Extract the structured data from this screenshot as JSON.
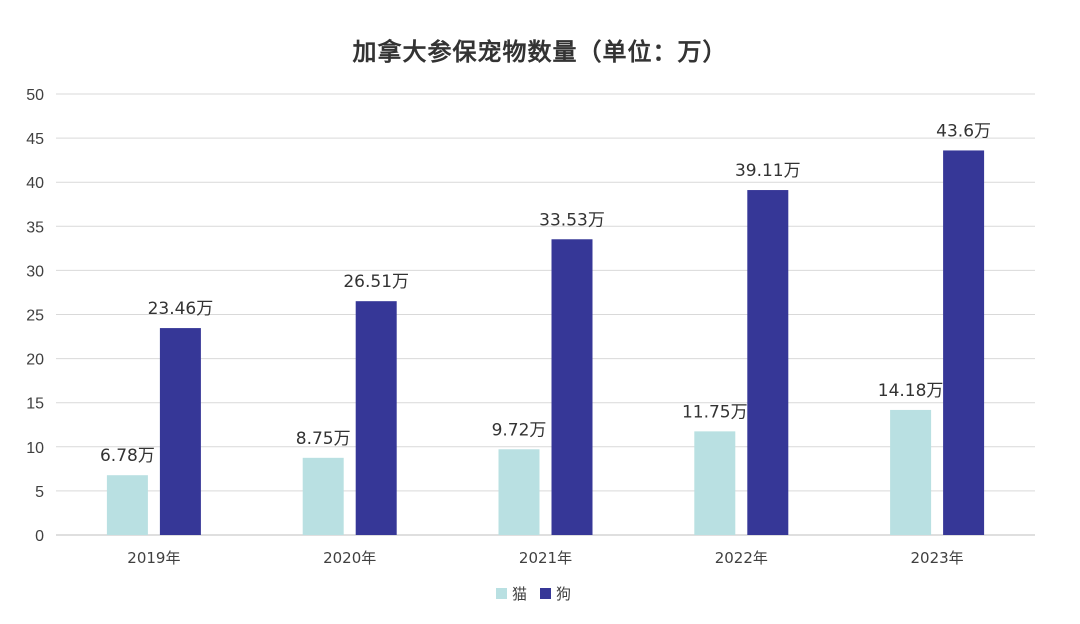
{
  "chart_data": {
    "type": "bar",
    "title": "加拿大参保宠物数量（单位：万）",
    "categories": [
      "2019年",
      "2020年",
      "2021年",
      "2022年",
      "2023年"
    ],
    "series": [
      {
        "name": "猫",
        "color": "#b9e0e2",
        "values": [
          6.78,
          8.75,
          9.72,
          11.75,
          14.18
        ],
        "labels": [
          "6.78万",
          "8.75万",
          "9.72万",
          "11.75万",
          "14.18万"
        ]
      },
      {
        "name": "狗",
        "color": "#363797",
        "values": [
          23.46,
          26.51,
          33.53,
          39.11,
          43.6
        ],
        "labels": [
          "23.46万",
          "26.51万",
          "33.53万",
          "39.11万",
          "43.6万"
        ]
      }
    ],
    "ylim": [
      0,
      50
    ],
    "yticks": [
      "0",
      "5",
      "10",
      "15",
      "20",
      "25",
      "30",
      "35",
      "40",
      "45",
      "50"
    ],
    "grid": true,
    "legend_position": "bottom-center",
    "xlabel": "",
    "ylabel": ""
  }
}
